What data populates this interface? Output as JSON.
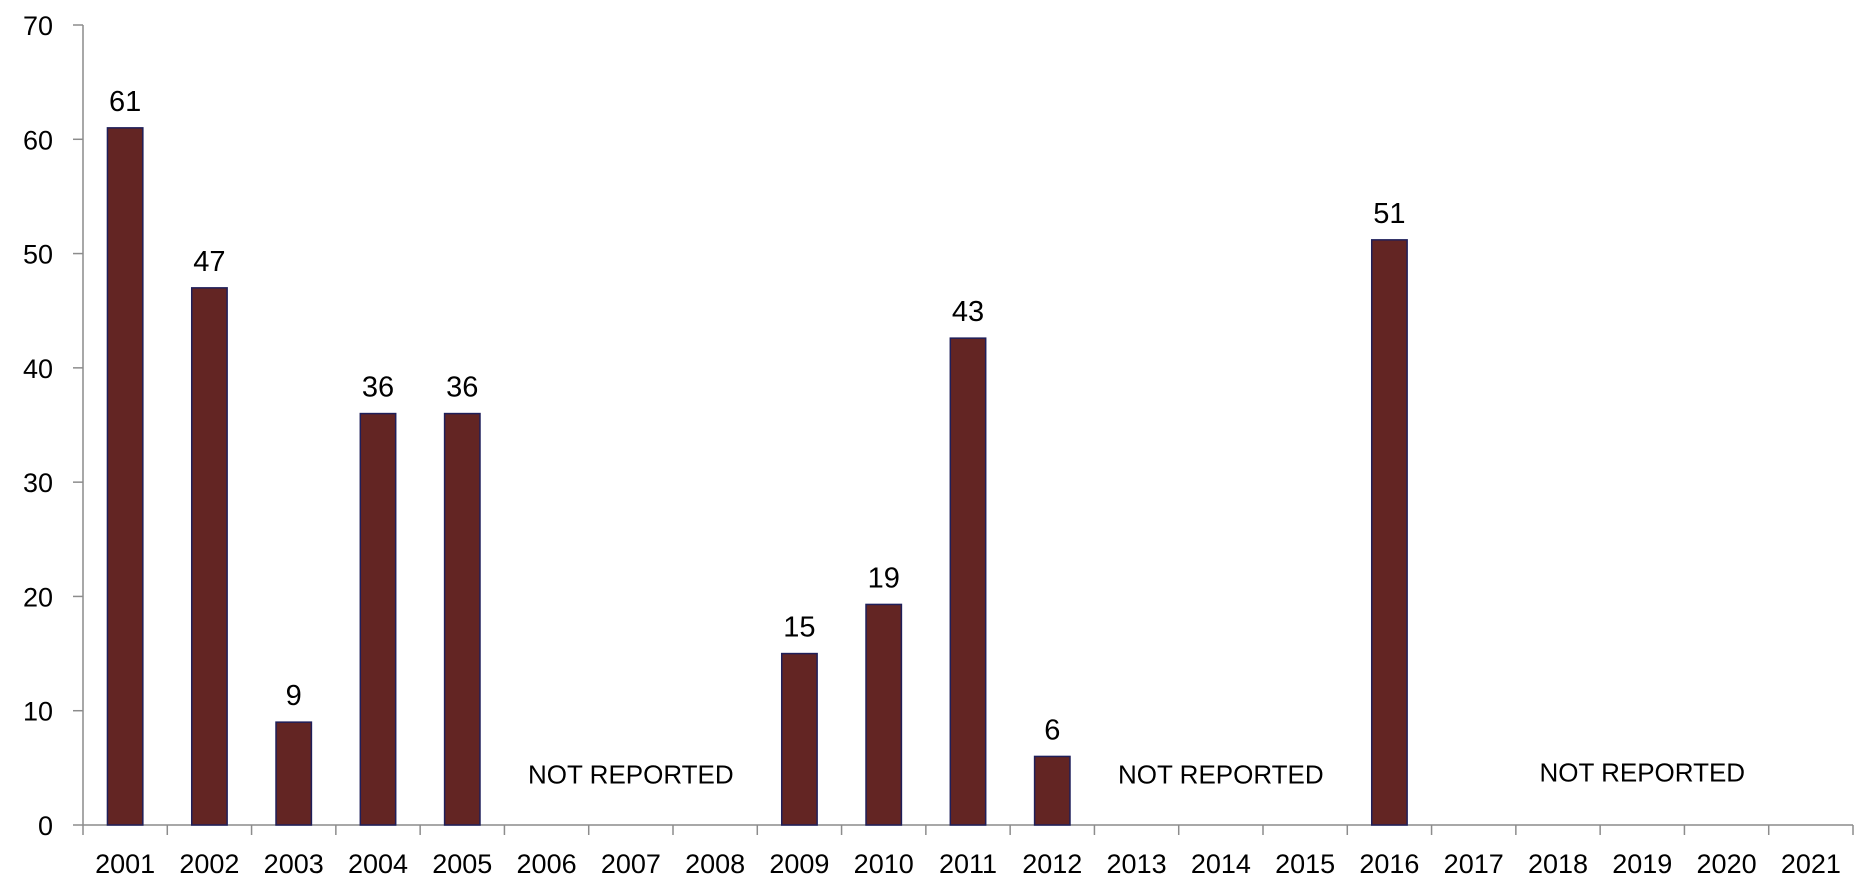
{
  "chart_data": {
    "type": "bar",
    "title": "",
    "xlabel": "",
    "ylabel": "",
    "categories": [
      "2001",
      "2002",
      "2003",
      "2004",
      "2005",
      "2006",
      "2007",
      "2008",
      "2009",
      "2010",
      "2011",
      "2012",
      "2013",
      "2014",
      "2015",
      "2016",
      "2017",
      "2018",
      "2019",
      "2020",
      "2021"
    ],
    "values": [
      61,
      47,
      9,
      36,
      36,
      null,
      null,
      null,
      15,
      19.3,
      42.6,
      6,
      null,
      null,
      null,
      51.2,
      null,
      null,
      null,
      null,
      null
    ],
    "data_labels": [
      "61",
      "47",
      "9",
      "36",
      "36",
      "",
      "",
      "",
      "15",
      "19",
      "43",
      "6",
      "",
      "",
      "",
      "51",
      "",
      "",
      "",
      "",
      ""
    ],
    "ylim": [
      0,
      70
    ],
    "yticks": [
      0,
      10,
      20,
      30,
      40,
      50,
      60,
      70
    ],
    "grid": false,
    "legend": "none",
    "bar_color": "#632523",
    "bar_edge_color": "#1f1f5a",
    "annotations": [
      {
        "text": "NOT REPORTED",
        "from": "2006",
        "to": "2008",
        "y": 4.4
      },
      {
        "text": "NOT REPORTED",
        "from": "2013",
        "to": "2015",
        "y": 4.4
      },
      {
        "text": "NOT REPORTED",
        "from": "2017",
        "to": "2021",
        "y": 4.6
      }
    ]
  }
}
